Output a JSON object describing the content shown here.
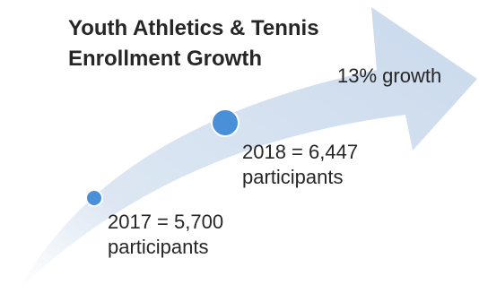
{
  "title": {
    "line1": "Youth Athletics & Tennis",
    "line2": "Enrollment Growth"
  },
  "growth_label": "13% growth",
  "points": [
    {
      "year": "2017",
      "value_text": "5,700",
      "value": 5700,
      "line1": "2017 = 5,700",
      "line2": "participants"
    },
    {
      "year": "2018",
      "value_text": "6,447",
      "value": 6447,
      "line1": "2018 = 6,447",
      "line2": "participants"
    }
  ],
  "colors": {
    "arrow": "#d4e0ee",
    "marker": "#4a90d9",
    "marker_stroke": "#ffffff",
    "text": "#262626"
  }
}
